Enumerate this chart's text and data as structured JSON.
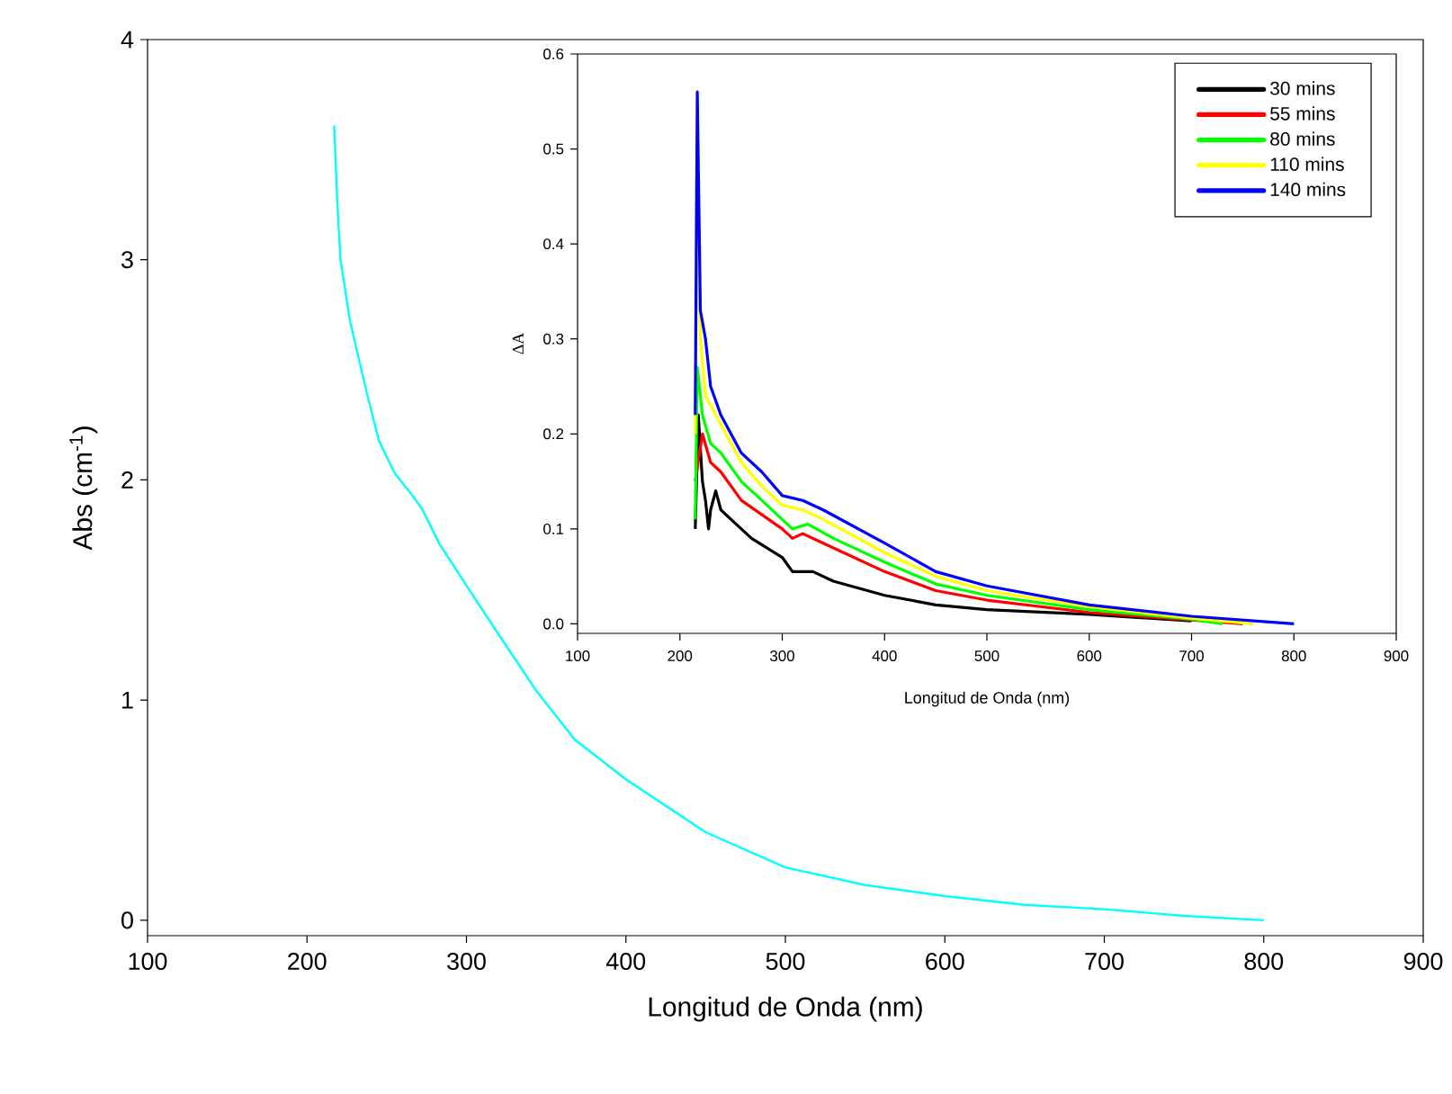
{
  "chart_data": [
    {
      "type": "line",
      "xlabel": "Longitud de Onda (nm)",
      "ylabel": "Abs (cm$^{-1}$)",
      "xlim": [
        100,
        900
      ],
      "ylim": [
        -0.07,
        4
      ],
      "xticks": [
        100,
        200,
        300,
        400,
        500,
        600,
        700,
        800,
        900
      ],
      "yticks": [
        0,
        1,
        2,
        3,
        4
      ],
      "series": [
        {
          "color": "#00ffff",
          "x": [
            217,
            219,
            221,
            227,
            237,
            245,
            255,
            266,
            272,
            283,
            300,
            320,
            344,
            368,
            400,
            450,
            500,
            550,
            600,
            650,
            700,
            750,
            800
          ],
          "values": [
            3.61,
            3.26,
            3.0,
            2.72,
            2.41,
            2.18,
            2.03,
            1.93,
            1.87,
            1.71,
            1.52,
            1.3,
            1.04,
            0.82,
            0.64,
            0.4,
            0.24,
            0.16,
            0.11,
            0.07,
            0.05,
            0.02,
            0.0
          ]
        }
      ]
    },
    {
      "type": "line",
      "xlabel": "Longitud de Onda (nm)",
      "ylabel": "ΔA",
      "xlim": [
        100,
        900
      ],
      "ylim": [
        -0.01,
        0.6
      ],
      "xticks": [
        100,
        200,
        300,
        400,
        500,
        600,
        700,
        800,
        900
      ],
      "yticks": [
        {
          "value": 0,
          "label": "0.0"
        },
        {
          "value": 0.1,
          "label": "0.1"
        },
        {
          "value": 0.2,
          "label": "0.2"
        },
        {
          "value": 0.3,
          "label": "0.3"
        },
        {
          "value": 0.4,
          "label": "0.4"
        },
        {
          "value": 0.5,
          "label": "0.5"
        },
        {
          "value": 0.6,
          "label": "0.6"
        }
      ],
      "legend": "top right",
      "series": [
        {
          "name": "30 mins",
          "color": "#000000",
          "x": [
            215,
            218,
            222,
            225,
            228,
            230,
            235,
            240,
            250,
            270,
            300,
            310,
            330,
            350,
            400,
            450,
            500,
            600,
            700
          ],
          "values": [
            0.1,
            0.22,
            0.15,
            0.13,
            0.1,
            0.12,
            0.14,
            0.12,
            0.11,
            0.09,
            0.07,
            0.055,
            0.055,
            0.045,
            0.03,
            0.02,
            0.015,
            0.01,
            0.003
          ]
        },
        {
          "name": "55 mins",
          "color": "#ff0000",
          "x": [
            215,
            218,
            222,
            230,
            240,
            260,
            280,
            300,
            310,
            320,
            340,
            400,
            450,
            500,
            600,
            700,
            750
          ],
          "values": [
            0.15,
            null,
            0.2,
            0.17,
            0.16,
            0.13,
            0.115,
            0.1,
            0.09,
            0.095,
            0.085,
            0.055,
            0.035,
            0.025,
            0.012,
            0.004,
            0.0
          ]
        },
        {
          "name": "80 mins",
          "color": "#00ff00",
          "x": [
            215,
            217,
            222,
            230,
            240,
            260,
            280,
            300,
            310,
            325,
            350,
            400,
            450,
            500,
            600,
            700,
            730
          ],
          "values": [
            0.11,
            0.27,
            0.22,
            0.19,
            0.18,
            0.15,
            0.13,
            0.11,
            0.1,
            0.105,
            0.09,
            0.065,
            0.042,
            0.03,
            0.015,
            0.005,
            0.0
          ]
        },
        {
          "name": "110 mins",
          "color": "#ffff00",
          "x": [
            215,
            216,
            220,
            225,
            240,
            260,
            280,
            300,
            320,
            340,
            400,
            450,
            500,
            600,
            700,
            760
          ],
          "values": [
            0.2,
            0.47,
            0.3,
            0.24,
            0.21,
            0.17,
            0.145,
            0.125,
            0.12,
            0.11,
            0.075,
            0.05,
            0.035,
            0.018,
            0.006,
            0.0
          ]
        },
        {
          "name": "140 mins",
          "color": "#0000ff",
          "x": [
            215,
            217,
            220,
            225,
            230,
            240,
            260,
            280,
            300,
            320,
            340,
            400,
            450,
            500,
            600,
            700,
            800
          ],
          "values": [
            0.22,
            0.56,
            0.33,
            0.3,
            0.25,
            0.22,
            0.18,
            0.16,
            0.135,
            0.13,
            0.12,
            0.085,
            0.055,
            0.04,
            0.02,
            0.008,
            0.0
          ]
        }
      ]
    }
  ]
}
